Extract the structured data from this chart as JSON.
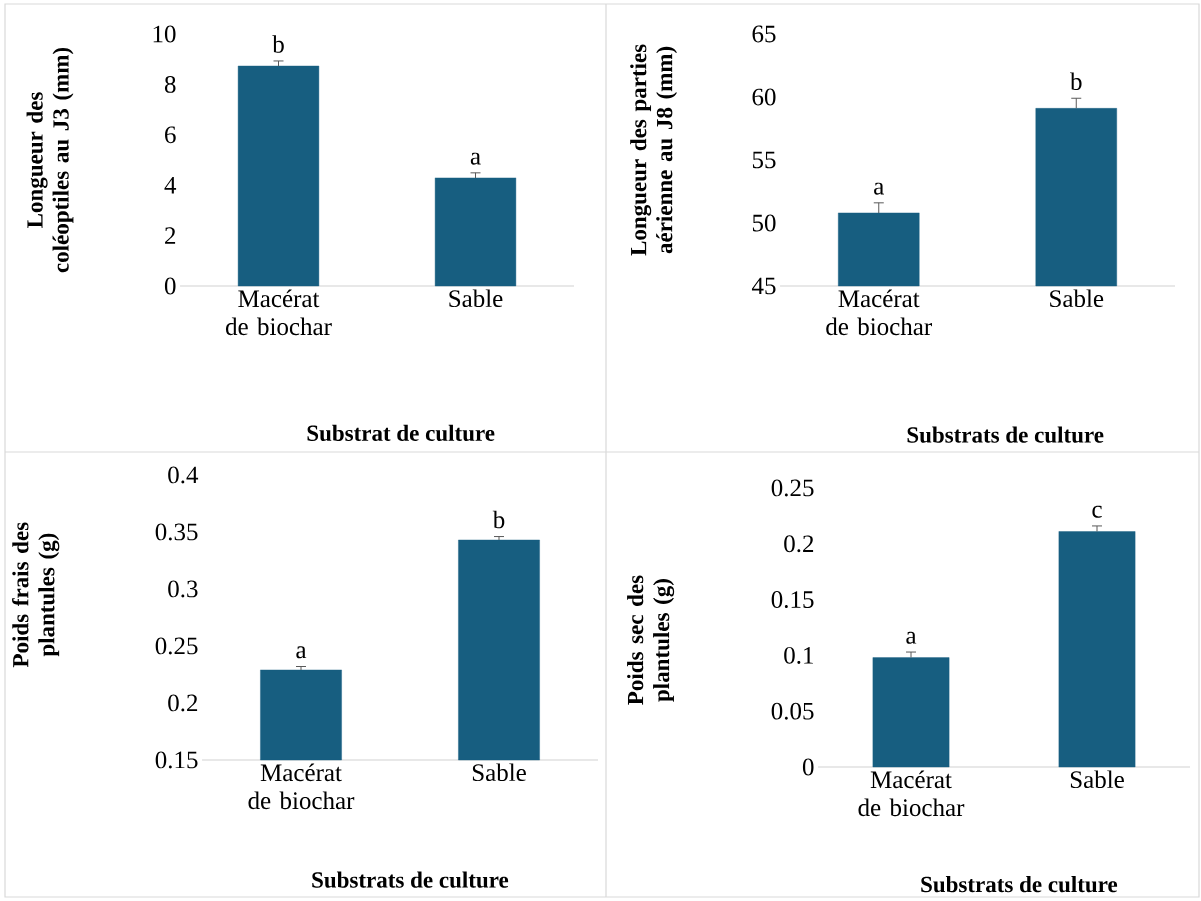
{
  "chart_data": [
    {
      "type": "bar",
      "categories": [
        "Macérat de biochar",
        "Sable"
      ],
      "values": [
        8.73,
        4.29
      ],
      "errors": [
        0.2,
        0.2
      ],
      "color": "#175e80",
      "ylim": [
        0,
        10
      ],
      "yticks": [
        0,
        2,
        4,
        6,
        8,
        10
      ],
      "xlabel": "Substrat de culture",
      "ylabel": "Longueur des coléoptiles au J3 (mm)",
      "annotations": [
        "b",
        "a"
      ]
    },
    {
      "type": "bar",
      "categories": [
        "Macérat de biochar",
        "Sable"
      ],
      "values": [
        50.8,
        59.1
      ],
      "errors": [
        0.8,
        0.8
      ],
      "color": "#175e80",
      "ylim": [
        45,
        65
      ],
      "yticks": [
        45,
        50,
        55,
        60,
        65
      ],
      "xlabel": "Substrats de culture",
      "ylabel": "Longueur des parties aérienne au J8 (mm)",
      "annotations": [
        "a",
        "b"
      ]
    },
    {
      "type": "bar",
      "categories": [
        "Macérat de biochar",
        "Sable"
      ],
      "values": [
        0.229,
        0.343
      ],
      "errors": [
        0.003,
        0.003
      ],
      "color": "#175e80",
      "ylim": [
        0.15,
        0.4
      ],
      "yticks": [
        0.15,
        0.2,
        0.25,
        0.3,
        0.35,
        0.4
      ],
      "xlabel": "Substrats de culture",
      "ylabel": "Poids frais des plantules (g)",
      "annotations": [
        "a",
        "b"
      ]
    },
    {
      "type": "bar",
      "categories": [
        "Macérat de biochar",
        "Sable"
      ],
      "values": [
        0.098,
        0.211
      ],
      "errors": [
        0.005,
        0.005
      ],
      "color": "#175e80",
      "ylim": [
        0,
        0.25
      ],
      "yticks": [
        0,
        0.05,
        0.1,
        0.15,
        0.2,
        0.25
      ],
      "xlabel": "Substrats de culture",
      "ylabel": "Poids sec des plantules (g)",
      "annotations": [
        "a",
        "c"
      ]
    }
  ]
}
